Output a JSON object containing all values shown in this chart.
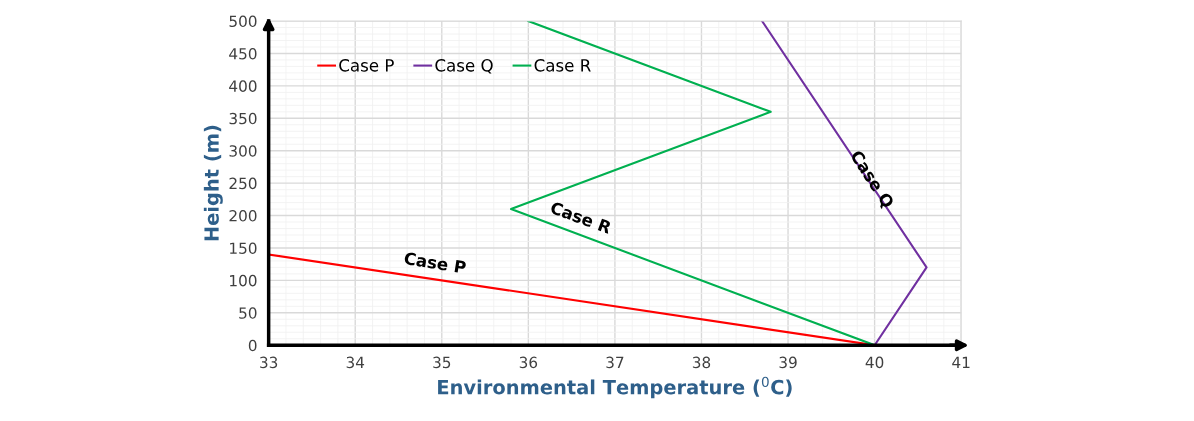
{
  "chart_data": {
    "type": "line",
    "xlabel": "Environmental Temperature ($^{0}$C)",
    "ylabel": "Height (m)",
    "series": [
      {
        "name": "Case P",
        "color": "#ff0000",
        "x": [
          33,
          40
        ],
        "values": [
          140,
          0
        ]
      },
      {
        "name": "Case Q",
        "color": "#7030a0",
        "x": [
          40,
          40.6,
          38.7
        ],
        "values": [
          0,
          120,
          500
        ]
      },
      {
        "name": "Case R",
        "color": "#00b050",
        "x": [
          40,
          35.8,
          38.8,
          36
        ],
        "values": [
          0,
          210,
          360,
          500
        ]
      }
    ],
    "annotations": [
      "Case P",
      "Case Q",
      "Case R"
    ],
    "xlim": [
      33,
      41
    ],
    "ylim": [
      0,
      500
    ],
    "xticks": [
      33,
      34,
      35,
      36,
      37,
      38,
      39,
      40,
      41
    ],
    "yticks": [
      0,
      50,
      100,
      150,
      200,
      250,
      300,
      350,
      400,
      450,
      500
    ],
    "grid": true,
    "legend": "top left",
    "marker": "none",
    "line_style": "solid"
  }
}
